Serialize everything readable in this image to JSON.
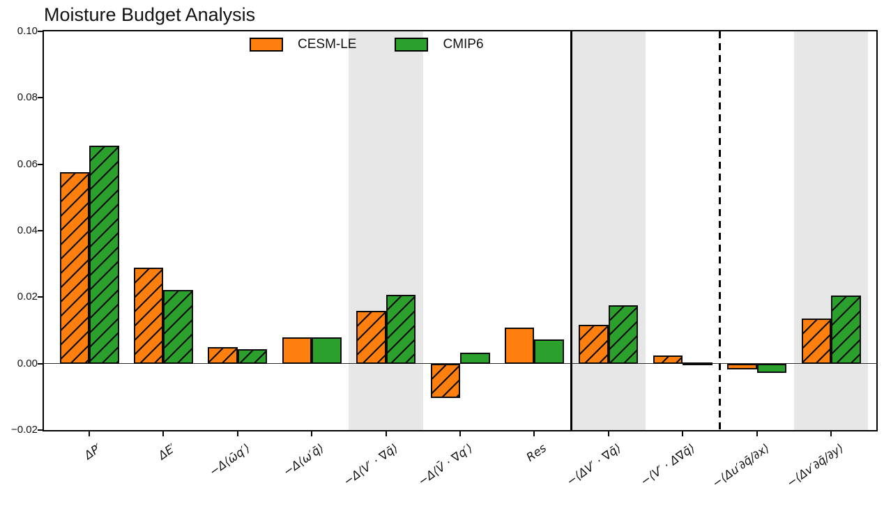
{
  "title": "Moisture Budget Analysis",
  "legend": {
    "items": [
      {
        "label": "CESM-LE",
        "color": "#ff7f0e"
      },
      {
        "label": "CMIP6",
        "color": "#2ca02c"
      }
    ]
  },
  "y_axis": {
    "tick_labels": [
      "0.10",
      "0.08",
      "0.06",
      "0.04",
      "0.02",
      "0.00",
      "−0.02"
    ],
    "tick_values": [
      0.1,
      0.08,
      0.06,
      0.04,
      0.02,
      0.0,
      -0.02
    ]
  },
  "chart_data": {
    "type": "bar",
    "title": "Moisture Budget Analysis",
    "categories": [
      "ΔP′",
      "ΔE′",
      "−Δ⟨ω̄q′⟩",
      "−Δ⟨ω′q̄⟩",
      "−Δ⟨V′ · ∇q̄⟩",
      "−Δ⟨V̄ · ∇q′⟩",
      "Res",
      "−⟨ΔV′ · ∇q̄⟩",
      "−⟨V′ · Δ∇q̄⟩",
      "−⟨Δu′∂q̄/∂x⟩",
      "−⟨Δv′∂q̄/∂y⟩"
    ],
    "series": [
      {
        "name": "CESM-LE",
        "color": "#ff7f0e",
        "values": [
          0.0577,
          0.0289,
          0.005,
          0.008,
          0.0158,
          -0.0103,
          0.0108,
          0.0116,
          0.0024,
          -0.0018,
          0.0135
        ],
        "hatched": [
          true,
          true,
          true,
          false,
          true,
          true,
          false,
          true,
          true,
          false,
          true
        ]
      },
      {
        "name": "CMIP6",
        "color": "#2ca02c",
        "values": [
          0.0655,
          0.0222,
          0.0044,
          0.0078,
          0.0207,
          0.0033,
          0.0073,
          0.0176,
          0.0004,
          -0.0029,
          0.0205
        ],
        "hatched": [
          true,
          true,
          true,
          false,
          true,
          false,
          false,
          true,
          false,
          false,
          true
        ]
      }
    ],
    "ylim": [
      -0.02,
      0.1
    ],
    "yticks": [
      0.1,
      0.08,
      0.06,
      0.04,
      0.02,
      0.0,
      -0.02
    ],
    "shaded_category_indices": [
      4,
      7,
      10
    ],
    "shaded_color": "#e7e7e7",
    "separators": [
      {
        "style": "solid",
        "after_category_index": 6
      },
      {
        "style": "dashed",
        "after_category_index": 8
      }
    ],
    "zero_line": true,
    "hatch_pattern": "/",
    "bar_edge_color": "#000000",
    "grid": false,
    "legend_position": "upper center"
  }
}
